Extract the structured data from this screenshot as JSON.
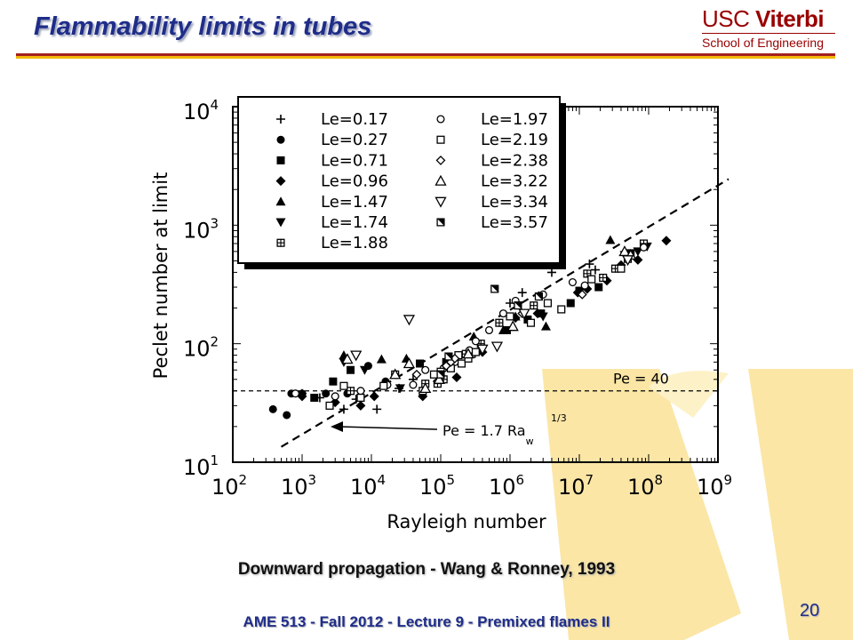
{
  "slide": {
    "title": "Flammability limits in tubes",
    "caption": "Downward propagation - Wang & Ronney, 1993",
    "footer": "AME 513 - Fall 2012 - Lecture 9 - Premixed flames II",
    "page_number": "20"
  },
  "logo": {
    "line1_usc": "USC",
    "line1_viterbi": "Viterbi",
    "line2": "School of Engineering",
    "color": "#990000"
  },
  "colors": {
    "title": "#1f2d8a",
    "rule_red": "#a31f1f",
    "rule_gold": "#f2b705",
    "watermark": "#fbe6a6"
  },
  "chart_data": {
    "type": "scatter",
    "xscale": "log",
    "yscale": "log",
    "xlim": [
      100,
      1000000000
    ],
    "ylim": [
      10,
      10000
    ],
    "xlabel": "Rayleigh number",
    "ylabel": "Peclet number at limit",
    "x_ticks": [
      {
        "base": "10",
        "exp": "2"
      },
      {
        "base": "10",
        "exp": "3"
      },
      {
        "base": "10",
        "exp": "4"
      },
      {
        "base": "10",
        "exp": "5"
      },
      {
        "base": "10",
        "exp": "6"
      },
      {
        "base": "10",
        "exp": "7"
      },
      {
        "base": "10",
        "exp": "8"
      },
      {
        "base": "10",
        "exp": "9"
      }
    ],
    "y_ticks": [
      {
        "base": "10",
        "exp": "1"
      },
      {
        "base": "10",
        "exp": "2"
      },
      {
        "base": "10",
        "exp": "3"
      },
      {
        "base": "10",
        "exp": "4"
      }
    ],
    "reference_lines": [
      {
        "label": "Pe = 40",
        "kind": "horizontal",
        "y": 40
      },
      {
        "label_main": "Pe = 1.7 Ra",
        "label_sub": "w",
        "label_sup": "1/3",
        "kind": "power",
        "coef": 1.7,
        "exponent": 0.3333,
        "x_from": 500,
        "x_to": 3000000000
      }
    ],
    "legend_position": "top-left",
    "series": [
      {
        "name": "Le=0.17",
        "marker": "plus",
        "points": [
          [
            1000,
            38
          ],
          [
            1800,
            35
          ],
          [
            4000,
            28
          ],
          [
            6000,
            34
          ],
          [
            12000,
            28
          ],
          [
            25000,
            42
          ],
          [
            40000,
            50
          ],
          [
            1000000,
            220
          ],
          [
            1500000,
            270
          ],
          [
            4000000,
            400
          ],
          [
            14000000,
            470
          ],
          [
            17000000,
            420
          ]
        ]
      },
      {
        "name": "Le=0.27",
        "marker": "circle-filled",
        "points": [
          [
            380,
            28
          ],
          [
            600,
            25
          ],
          [
            700,
            38
          ],
          [
            1000,
            38
          ],
          [
            2200,
            38
          ],
          [
            4500,
            38
          ],
          [
            9000,
            65
          ],
          [
            16000,
            48
          ]
        ]
      },
      {
        "name": "Le=0.71",
        "marker": "square-filled",
        "points": [
          [
            1500,
            35
          ],
          [
            2800,
            48
          ],
          [
            5000,
            60
          ],
          [
            50000,
            68
          ],
          [
            120000,
            70
          ],
          [
            900000,
            130
          ],
          [
            1800000,
            160
          ],
          [
            2800000,
            180
          ],
          [
            7500000,
            220
          ],
          [
            10000000,
            280
          ],
          [
            19000000,
            300
          ],
          [
            55000000,
            580
          ]
        ]
      },
      {
        "name": "Le=0.96",
        "marker": "diamond-filled",
        "points": [
          [
            1000,
            36
          ],
          [
            3000,
            32
          ],
          [
            7000,
            30
          ],
          [
            11000,
            36
          ],
          [
            55000,
            36
          ],
          [
            90000,
            48
          ],
          [
            170000,
            52
          ],
          [
            250000,
            80
          ],
          [
            400000,
            85
          ],
          [
            1200000,
            165
          ],
          [
            2500000,
            180
          ],
          [
            9500000,
            270
          ],
          [
            13000000,
            290
          ],
          [
            25000000,
            340
          ],
          [
            40000000,
            460
          ],
          [
            70000000,
            510
          ],
          [
            180000000,
            740
          ]
        ]
      },
      {
        "name": "Le=1.47",
        "marker": "triangle-filled",
        "points": [
          [
            4000,
            80
          ],
          [
            14000,
            74
          ],
          [
            32000,
            75
          ],
          [
            300000,
            115
          ],
          [
            800000,
            130
          ],
          [
            1200000,
            170
          ],
          [
            3300000,
            140
          ],
          [
            28000000,
            750
          ]
        ]
      },
      {
        "name": "Le=1.74",
        "marker": "triangle-down-filled",
        "points": [
          [
            4000,
            70
          ],
          [
            8000,
            60
          ],
          [
            26000,
            42
          ],
          [
            3000000,
            170
          ],
          [
            45000000,
            560
          ],
          [
            70000000,
            600
          ],
          [
            95000000,
            660
          ]
        ]
      },
      {
        "name": "Le=1.88",
        "marker": "square-cross",
        "points": [
          [
            5000,
            40
          ],
          [
            22000,
            55
          ],
          [
            60000,
            46
          ],
          [
            90000,
            46
          ],
          [
            110000,
            50
          ],
          [
            150000,
            72
          ],
          [
            230000,
            82
          ],
          [
            280000,
            82
          ],
          [
            380000,
            100
          ],
          [
            700000,
            150
          ],
          [
            2200000,
            210
          ],
          [
            13000000,
            390
          ],
          [
            22000000,
            360
          ],
          [
            33000000,
            430
          ],
          [
            50000000,
            520
          ],
          [
            85000000,
            700
          ]
        ]
      },
      {
        "name": "Le=1.97",
        "marker": "circle-open",
        "points": [
          [
            800,
            38
          ],
          [
            3000,
            36
          ],
          [
            7000,
            40
          ],
          [
            17000,
            45
          ],
          [
            40000,
            45
          ],
          [
            60000,
            60
          ],
          [
            110000,
            62
          ],
          [
            160000,
            70
          ],
          [
            260000,
            88
          ],
          [
            320000,
            105
          ],
          [
            500000,
            130
          ],
          [
            800000,
            180
          ],
          [
            1200000,
            230
          ],
          [
            3000000,
            260
          ],
          [
            8000000,
            330
          ],
          [
            12000000,
            310
          ],
          [
            85000000,
            650
          ]
        ]
      },
      {
        "name": "Le=2.19",
        "marker": "square-open",
        "points": [
          [
            2500,
            30
          ],
          [
            4000,
            44
          ],
          [
            7000,
            35
          ],
          [
            15000,
            44
          ],
          [
            55000,
            40
          ],
          [
            80000,
            55
          ],
          [
            100000,
            58
          ],
          [
            140000,
            62
          ],
          [
            180000,
            80
          ],
          [
            200000,
            68
          ],
          [
            250000,
            75
          ],
          [
            320000,
            85
          ],
          [
            1000000,
            170
          ],
          [
            2000000,
            150
          ],
          [
            3500000,
            220
          ],
          [
            5500000,
            195
          ],
          [
            15000000,
            350
          ],
          [
            40000000,
            430
          ]
        ]
      },
      {
        "name": "Le=2.38",
        "marker": "diamond-open",
        "points": [
          [
            45000,
            55
          ],
          [
            120000,
            65
          ],
          [
            140000,
            70
          ],
          [
            160000,
            75
          ],
          [
            1500000,
            180
          ],
          [
            11000000,
            260
          ]
        ]
      },
      {
        "name": "Le=3.22",
        "marker": "triangle-open",
        "points": [
          [
            4500,
            74
          ],
          [
            22000,
            55
          ],
          [
            35000,
            68
          ],
          [
            60000,
            42
          ],
          [
            95000,
            50
          ],
          [
            250000,
            82
          ],
          [
            1100000,
            140
          ],
          [
            45000000,
            600
          ],
          [
            55000000,
            560
          ]
        ]
      },
      {
        "name": "Le=3.34",
        "marker": "triangle-down-open",
        "points": [
          [
            6000,
            80
          ],
          [
            35000,
            160
          ],
          [
            400000,
            90
          ],
          [
            650000,
            95
          ],
          [
            1600000,
            180
          ],
          [
            50000000,
            510
          ]
        ]
      },
      {
        "name": "Le=3.57",
        "marker": "square-hatched",
        "points": [
          [
            100000,
            55
          ],
          [
            130000,
            78
          ],
          [
            600000,
            290
          ],
          [
            1300000,
            210
          ],
          [
            2600000,
            250
          ]
        ]
      }
    ]
  }
}
